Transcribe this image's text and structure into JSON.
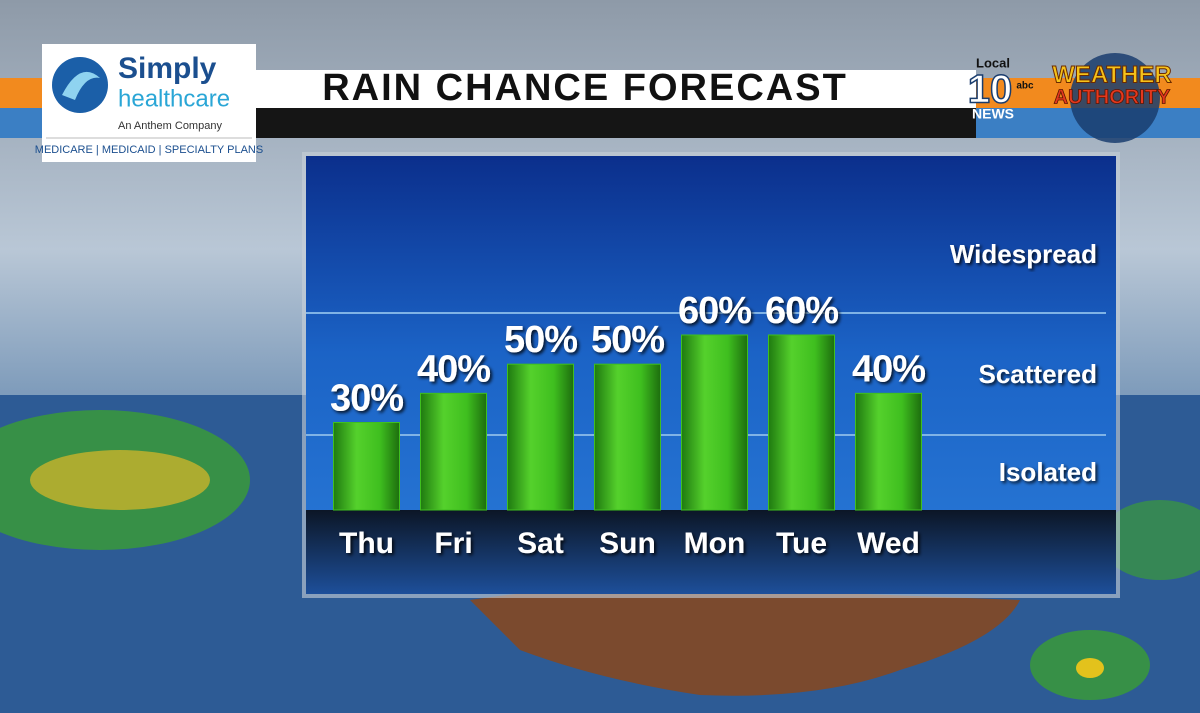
{
  "chart_data": {
    "type": "bar",
    "title": "RAIN CHANCE FORECAST",
    "categories": [
      "Thu",
      "Fri",
      "Sat",
      "Sun",
      "Mon",
      "Tue",
      "Wed"
    ],
    "values": [
      30,
      40,
      50,
      50,
      60,
      60,
      40
    ],
    "value_labels": [
      "30%",
      "40%",
      "50%",
      "50%",
      "60%",
      "60%",
      "40%"
    ],
    "color": "#3fbf1f",
    "ylim": [
      0,
      120
    ],
    "annotations": [
      "Widespread",
      "Scattered",
      "Isolated"
    ]
  },
  "sponsor": {
    "name_1": "Simply",
    "name_2": "healthcare",
    "tagline": "An Anthem Company",
    "plans": "MEDICARE | MEDICAID | SPECIALTY PLANS"
  },
  "station": {
    "local": "Local",
    "number": "10",
    "network": "abc",
    "news": "NEWS",
    "brand_1": "WEATHER",
    "brand_2": "AUTHORITY"
  }
}
